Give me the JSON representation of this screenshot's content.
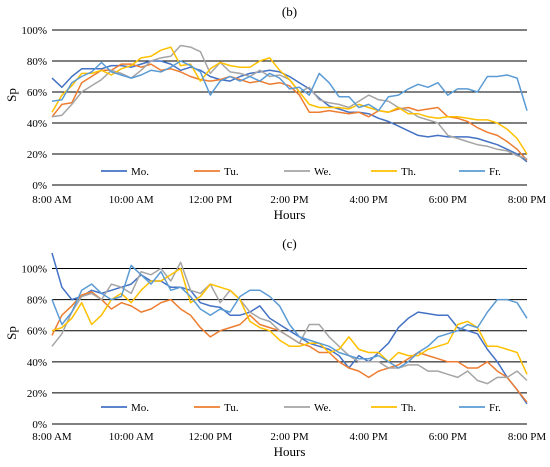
{
  "colors": {
    "Mo.": "#4472c4",
    "Tu.": "#ed7d31",
    "We.": "#a5a5a5",
    "Th.": "#ffc000",
    "Fr.": "#5b9bd5",
    "grid": "#000000"
  },
  "chart_data": [
    {
      "type": "line",
      "title": "(b)",
      "xlabel": "Hours",
      "ylabel": "Sp",
      "x_ticks": [
        "8:00 AM",
        "10:00 AM",
        "12:00 PM",
        "2:00 PM",
        "4:00 PM",
        "6:00 PM",
        "8:00 PM"
      ],
      "y_ticks": [
        "0%",
        "20%",
        "40%",
        "60%",
        "80%",
        "100%"
      ],
      "xlim": [
        "8:00 AM",
        "8:00 PM"
      ],
      "ylim": [
        0,
        100
      ],
      "x_hours": [
        8,
        8.25,
        8.5,
        8.75,
        9,
        9.25,
        9.5,
        9.75,
        10,
        10.25,
        10.5,
        10.75,
        11,
        11.25,
        11.5,
        11.75,
        12,
        12.25,
        12.5,
        12.75,
        13,
        13.25,
        13.5,
        13.75,
        14,
        14.25,
        14.5,
        14.75,
        15,
        15.25,
        15.5,
        15.75,
        16,
        16.25,
        16.5,
        16.75,
        17,
        17.25,
        17.5,
        17.75,
        18,
        18.25,
        18.5,
        18.75,
        19,
        19.25,
        19.5,
        19.75,
        20
      ],
      "grid": "horizontal",
      "legend": "bottom",
      "series": [
        {
          "name": "Mo.",
          "values": [
            69,
            63,
            70,
            75,
            75,
            75,
            77,
            77,
            76,
            78,
            80,
            80,
            78,
            74,
            76,
            74,
            70,
            68,
            67,
            70,
            72,
            73,
            74,
            73,
            70,
            66,
            62,
            56,
            51,
            49,
            47,
            47,
            46,
            43,
            41,
            38,
            35,
            32,
            31,
            32,
            31,
            31,
            31,
            30,
            28,
            26,
            23,
            20,
            15
          ]
        },
        {
          "name": "Tu.",
          "values": [
            44,
            52,
            53,
            66,
            70,
            74,
            74,
            78,
            78,
            76,
            78,
            74,
            75,
            73,
            70,
            68,
            67,
            68,
            70,
            68,
            66,
            67,
            65,
            66,
            64,
            58,
            47,
            47,
            48,
            47,
            46,
            47,
            44,
            48,
            47,
            49,
            50,
            48,
            49,
            50,
            44,
            43,
            41,
            37,
            34,
            32,
            28,
            23,
            16
          ]
        },
        {
          "name": "We.",
          "values": [
            44,
            45,
            52,
            60,
            64,
            68,
            74,
            72,
            69,
            74,
            80,
            82,
            83,
            90,
            89,
            86,
            72,
            79,
            73,
            72,
            70,
            74,
            70,
            71,
            68,
            60,
            63,
            55,
            53,
            52,
            50,
            54,
            58,
            55,
            54,
            50,
            48,
            44,
            42,
            40,
            32,
            30,
            28,
            26,
            25,
            23,
            22,
            19,
            17
          ]
        },
        {
          "name": "Th.",
          "values": [
            47,
            58,
            64,
            72,
            72,
            74,
            71,
            75,
            77,
            82,
            83,
            87,
            89,
            77,
            78,
            67,
            75,
            79,
            77,
            76,
            76,
            80,
            82,
            74,
            68,
            60,
            52,
            50,
            50,
            50,
            49,
            52,
            50,
            48,
            47,
            50,
            46,
            46,
            44,
            43,
            44,
            44,
            43,
            42,
            42,
            40,
            36,
            30,
            20
          ]
        },
        {
          "name": "Fr.",
          "values": [
            54,
            55,
            66,
            70,
            73,
            79,
            73,
            71,
            69,
            71,
            74,
            73,
            76,
            80,
            77,
            73,
            58,
            67,
            70,
            67,
            70,
            67,
            72,
            69,
            62,
            63,
            58,
            72,
            66,
            57,
            57,
            50,
            52,
            48,
            57,
            58,
            62,
            65,
            63,
            66,
            58,
            62,
            62,
            60,
            70,
            70,
            71,
            69,
            48
          ]
        }
      ]
    },
    {
      "type": "line",
      "title": "(c)",
      "xlabel": "Hours",
      "ylabel": "Sp",
      "x_ticks": [
        "8:00 AM",
        "10:00 AM",
        "12:00 PM",
        "2:00 PM",
        "4:00 PM",
        "6:00 PM",
        "8:00 PM"
      ],
      "y_ticks": [
        "0%",
        "20%",
        "40%",
        "60%",
        "80%",
        "100%"
      ],
      "xlim": [
        "8:00 AM",
        "8:00 PM"
      ],
      "ylim": [
        0,
        110
      ],
      "x_hours": [
        8,
        8.25,
        8.5,
        8.75,
        9,
        9.25,
        9.5,
        9.75,
        10,
        10.25,
        10.5,
        10.75,
        11,
        11.25,
        11.5,
        11.75,
        12,
        12.25,
        12.5,
        12.75,
        13,
        13.25,
        13.5,
        13.75,
        14,
        14.25,
        14.5,
        14.75,
        15,
        15.25,
        15.5,
        15.75,
        16,
        16.25,
        16.5,
        16.75,
        17,
        17.25,
        17.5,
        17.75,
        18,
        18.25,
        18.5,
        18.75,
        19,
        19.25,
        19.5,
        19.75,
        20
      ],
      "grid": "horizontal",
      "legend": "bottom",
      "series": [
        {
          "name": "Mo.",
          "values": [
            110,
            88,
            80,
            82,
            86,
            84,
            86,
            88,
            90,
            96,
            92,
            92,
            88,
            88,
            86,
            78,
            76,
            75,
            70,
            70,
            72,
            76,
            68,
            64,
            60,
            56,
            52,
            50,
            48,
            44,
            36,
            44,
            40,
            46,
            52,
            62,
            68,
            72,
            71,
            70,
            70,
            62,
            60,
            58,
            48,
            40,
            30,
            22,
            13
          ]
        },
        {
          "name": "Tu.",
          "values": [
            57,
            70,
            76,
            83,
            85,
            80,
            74,
            78,
            76,
            72,
            74,
            78,
            80,
            74,
            70,
            62,
            56,
            60,
            62,
            64,
            70,
            64,
            62,
            60,
            56,
            52,
            50,
            46,
            46,
            40,
            36,
            34,
            30,
            34,
            36,
            38,
            42,
            46,
            44,
            42,
            40,
            40,
            36,
            36,
            40,
            34,
            30,
            22,
            14
          ]
        },
        {
          "name": "We.",
          "values": [
            50,
            58,
            72,
            82,
            84,
            80,
            90,
            88,
            84,
            98,
            96,
            100,
            92,
            104,
            86,
            84,
            90,
            78,
            86,
            80,
            72,
            68,
            66,
            60,
            56,
            52,
            64,
            64,
            56,
            50,
            44,
            40,
            40,
            40,
            36,
            36,
            38,
            38,
            34,
            34,
            32,
            30,
            34,
            28,
            26,
            30,
            30,
            34,
            28
          ]
        },
        {
          "name": "Th.",
          "values": [
            60,
            62,
            68,
            78,
            64,
            70,
            80,
            84,
            78,
            86,
            92,
            92,
            96,
            100,
            78,
            82,
            90,
            88,
            86,
            80,
            66,
            62,
            60,
            54,
            50,
            50,
            52,
            52,
            46,
            48,
            56,
            48,
            46,
            46,
            40,
            46,
            44,
            44,
            48,
            50,
            52,
            64,
            66,
            62,
            50,
            50,
            48,
            46,
            32
          ]
        },
        {
          "name": "Fr.",
          "values": [
            80,
            64,
            72,
            86,
            90,
            84,
            80,
            82,
            102,
            96,
            90,
            98,
            86,
            88,
            82,
            74,
            70,
            74,
            72,
            82,
            86,
            86,
            82,
            76,
            64,
            56,
            54,
            52,
            50,
            46,
            44,
            42,
            42,
            44,
            40,
            36,
            40,
            46,
            50,
            56,
            58,
            60,
            64,
            62,
            72,
            80,
            80,
            78,
            68
          ]
        }
      ]
    }
  ]
}
